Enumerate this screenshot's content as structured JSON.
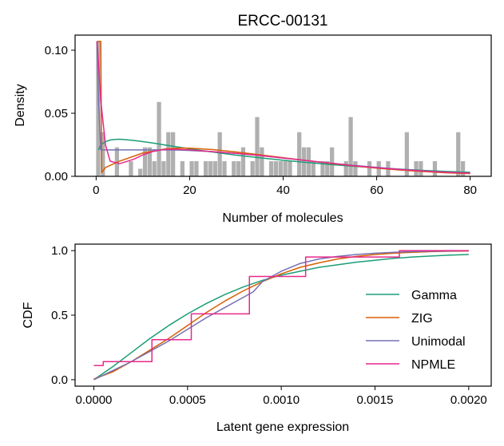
{
  "chart_data": [
    {
      "type": "bar",
      "title": "ERCC-00131",
      "xlabel": "Number of molecules",
      "ylabel": "Density",
      "xlim": [
        -4.5,
        84.5
      ],
      "ylim": [
        0,
        0.112
      ],
      "xticks": [
        0,
        20,
        40,
        60,
        80
      ],
      "xtick_labels": [
        "0",
        "20",
        "40",
        "60",
        "80"
      ],
      "yticks": [
        0,
        0.05,
        0.1
      ],
      "ytick_labels": [
        "0.00",
        "0.05",
        "0.10"
      ],
      "grid": false,
      "histogram": {
        "color": "#b0b0b0",
        "bin_width": 1,
        "bin_starts": [
          0,
          1,
          4,
          7,
          9,
          10,
          11,
          12,
          13,
          14,
          15,
          16,
          18,
          20,
          21,
          23,
          24,
          25,
          26,
          27,
          29,
          30,
          31,
          33,
          34,
          35,
          37,
          38,
          39,
          40,
          41,
          43,
          44,
          45,
          46,
          48,
          49,
          50,
          53,
          54,
          55,
          58,
          60,
          62,
          66,
          68,
          69,
          72,
          77,
          78
        ],
        "densities": [
          0.107,
          0.035,
          0.023,
          0.012,
          0.006,
          0.023,
          0.023,
          0.012,
          0.059,
          0.012,
          0.035,
          0.035,
          0.012,
          0.012,
          0.012,
          0.012,
          0.012,
          0.012,
          0.035,
          0.012,
          0.012,
          0.012,
          0.023,
          0.012,
          0.047,
          0.023,
          0.012,
          0.012,
          0.012,
          0.012,
          0.012,
          0.035,
          0.023,
          0.023,
          0.012,
          0.012,
          0.012,
          0.023,
          0.012,
          0.047,
          0.012,
          0.012,
          0.012,
          0.012,
          0.035,
          0.012,
          0.012,
          0.012,
          0.035,
          0.012
        ]
      },
      "series": [
        {
          "name": "Gamma",
          "color": "#1b9e77",
          "x": [
            0.5,
            1,
            2,
            3,
            4,
            5,
            6,
            8,
            10,
            12,
            15,
            20,
            25,
            30,
            35,
            40,
            45,
            50,
            55,
            60,
            65,
            70,
            75,
            80
          ],
          "y": [
            0.021,
            0.025,
            0.0275,
            0.0288,
            0.0293,
            0.0294,
            0.0292,
            0.0285,
            0.0275,
            0.0265,
            0.0247,
            0.0218,
            0.0192,
            0.0168,
            0.0147,
            0.0127,
            0.011,
            0.0094,
            0.008,
            0.0068,
            0.0057,
            0.0047,
            0.0039,
            0.0032
          ]
        },
        {
          "name": "ZIG",
          "color": "#d95f02",
          "x": [
            0.2,
            0.5,
            1,
            1.2,
            2,
            5,
            10,
            15,
            18,
            20,
            25,
            30,
            35,
            40,
            45,
            50,
            55,
            60,
            65,
            70,
            75,
            80
          ],
          "y": [
            0.107,
            0.107,
            0.107,
            0.003,
            0.007,
            0.012,
            0.0185,
            0.0218,
            0.0225,
            0.0223,
            0.0212,
            0.0193,
            0.0171,
            0.0148,
            0.0125,
            0.0103,
            0.0083,
            0.0065,
            0.005,
            0.0038,
            0.0028,
            0.0021
          ]
        },
        {
          "name": "Unimodal",
          "color": "#7570b3",
          "x": [
            0.2,
            0.5,
            1,
            1.5,
            2,
            5,
            10,
            15,
            18,
            20,
            25,
            30,
            35,
            40,
            45,
            50,
            55,
            60,
            65,
            70,
            75,
            80
          ],
          "y": [
            0.107,
            0.06,
            0.021,
            0.021,
            0.021,
            0.021,
            0.021,
            0.021,
            0.0208,
            0.0205,
            0.0195,
            0.0182,
            0.0165,
            0.0145,
            0.0125,
            0.0105,
            0.0087,
            0.0071,
            0.0056,
            0.0043,
            0.0033,
            0.0025
          ]
        },
        {
          "name": "NPMLE",
          "color": "#e7298a",
          "x": [
            0.2,
            0.5,
            1,
            2,
            3,
            5,
            8,
            10,
            12,
            14,
            16,
            18,
            20,
            25,
            30,
            35,
            40,
            45,
            50,
            55,
            60,
            65,
            70,
            75,
            80
          ],
          "y": [
            0.107,
            0.09,
            0.06,
            0.025,
            0.012,
            0.01,
            0.0135,
            0.017,
            0.0195,
            0.021,
            0.0215,
            0.0213,
            0.021,
            0.0195,
            0.0182,
            0.0165,
            0.0145,
            0.0125,
            0.0105,
            0.0085,
            0.0068,
            0.0054,
            0.0042,
            0.0032,
            0.0025
          ]
        }
      ]
    },
    {
      "type": "line",
      "title": "",
      "xlabel": "Latent gene expression",
      "ylabel": "CDF",
      "xlim": [
        -0.0001,
        0.00212
      ],
      "ylim": [
        -0.05,
        1.05
      ],
      "xticks": [
        0,
        0.0005,
        0.001,
        0.0015,
        0.002
      ],
      "xtick_labels": [
        "0.0000",
        "0.0005",
        "0.0010",
        "0.0015",
        "0.0020"
      ],
      "yticks": [
        0,
        0.5,
        1
      ],
      "ytick_labels": [
        "0.0",
        "0.5",
        "1.0"
      ],
      "grid": false,
      "legend": {
        "position": "right",
        "entries": [
          "Gamma",
          "ZIG",
          "Unimodal",
          "NPMLE"
        ]
      },
      "series": [
        {
          "name": "Gamma",
          "color": "#1b9e77",
          "x": [
            0,
            0.0001,
            0.0002,
            0.0003,
            0.0004,
            0.0005,
            0.0006,
            0.0007,
            0.0008,
            0.0009,
            0.001,
            0.0011,
            0.0012,
            0.0013,
            0.0014,
            0.0015,
            0.0016,
            0.0017,
            0.0018,
            0.0019,
            0.002
          ],
          "y": [
            0,
            0.1,
            0.21,
            0.32,
            0.42,
            0.51,
            0.59,
            0.66,
            0.72,
            0.77,
            0.81,
            0.84,
            0.87,
            0.89,
            0.91,
            0.925,
            0.94,
            0.95,
            0.958,
            0.965,
            0.97
          ]
        },
        {
          "name": "ZIG",
          "color": "#d95f02",
          "x": [
            0,
            0.0001,
            0.0002,
            0.0003,
            0.0004,
            0.0005,
            0.0006,
            0.0007,
            0.0008,
            0.0009,
            0.001,
            0.0011,
            0.0012,
            0.0013,
            0.0014,
            0.0015,
            0.0016,
            0.0017,
            0.0018,
            0.0019,
            0.002
          ],
          "y": [
            0.005,
            0.06,
            0.14,
            0.23,
            0.32,
            0.42,
            0.52,
            0.61,
            0.69,
            0.76,
            0.82,
            0.87,
            0.905,
            0.935,
            0.955,
            0.97,
            0.98,
            0.987,
            0.992,
            0.995,
            0.997
          ]
        },
        {
          "name": "Unimodal",
          "color": "#7570b3",
          "x": [
            0,
            0.0001,
            0.0002,
            0.0003,
            0.0004,
            0.0005,
            0.0006,
            0.0007,
            0.0008,
            0.00085,
            0.0009,
            0.001,
            0.0011,
            0.0012,
            0.0013,
            0.0014,
            0.0015,
            0.0016,
            0.0017,
            0.0018,
            0.0019,
            0.002
          ],
          "y": [
            0,
            0.07,
            0.14,
            0.22,
            0.3,
            0.39,
            0.48,
            0.56,
            0.64,
            0.68,
            0.76,
            0.84,
            0.9,
            0.935,
            0.955,
            0.97,
            0.98,
            0.987,
            0.992,
            0.995,
            0.997,
            0.999
          ]
        },
        {
          "name": "NPMLE",
          "color": "#e7298a",
          "step": true,
          "x": [
            0,
            5e-05,
            0.00031,
            0.00052,
            0.00083,
            0.00113,
            0.00163,
            0.002
          ],
          "y": [
            0.11,
            0.14,
            0.31,
            0.51,
            0.8,
            0.95,
            1.0,
            1.0
          ]
        }
      ]
    }
  ]
}
